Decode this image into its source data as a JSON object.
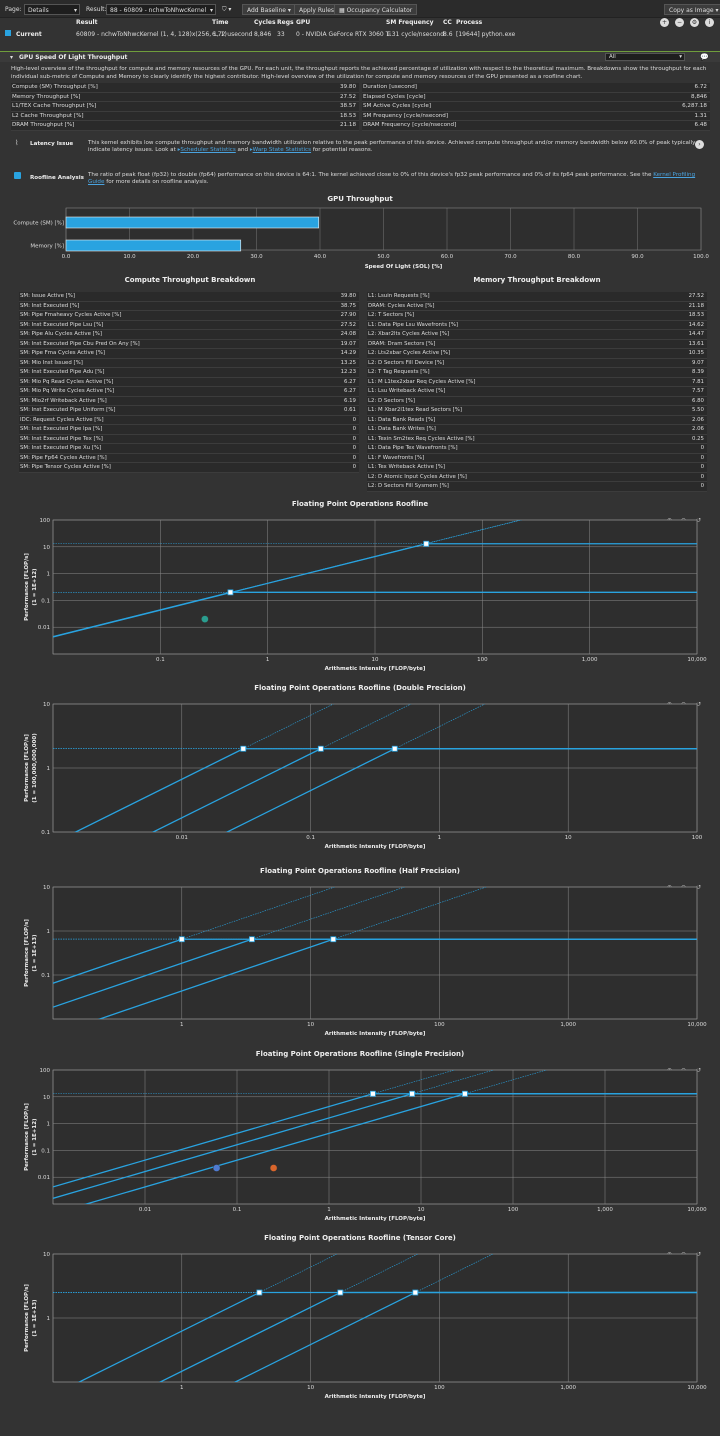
{
  "toolbar": {
    "page_label": "Page:",
    "page_value": "Details",
    "result_label": "Result:",
    "result_value": "88 - 60809 - nchwToNhwcKernel",
    "add_baseline": "Add Baseline",
    "apply_rules": "Apply Rules",
    "occupancy": "Occupancy Calculator",
    "copy_image": "Copy as Image"
  },
  "result": {
    "headers": [
      "Result",
      "Time",
      "Cycles",
      "Regs",
      "GPU",
      "SM Frequency",
      "CC",
      "Process"
    ],
    "current_label": "Current",
    "values": [
      "60809 - nchwToNhwcKernel (1, 4, 128)x(256, 1, 1)",
      "6.72 usecond",
      "8,846",
      "33",
      "0 - NVIDIA GeForce RTX 3060 Ti",
      "1.31 cycle/nsecond",
      "8.6",
      "[19644] python.exe"
    ]
  },
  "section": {
    "title": "GPU Speed Of Light Throughput",
    "filter": "All",
    "description": "High-level overview of the throughput for compute and memory resources of the GPU. For each unit, the throughput reports the achieved percentage of utilization with respect to the theoretical maximum. Breakdowns show the throughput for each individual sub-metric of Compute and Memory to clearly identify the highest contributor. High-level overview of the utilization for compute and memory resources of the GPU presented as a roofline chart."
  },
  "metrics_left": [
    [
      "Compute (SM) Throughput [%]",
      "39.80"
    ],
    [
      "Memory Throughput [%]",
      "27.52"
    ],
    [
      "L1/TEX Cache Throughput [%]",
      "38.57"
    ],
    [
      "L2 Cache Throughput [%]",
      "18.53"
    ],
    [
      "DRAM Throughput [%]",
      "21.18"
    ]
  ],
  "metrics_right": [
    [
      "Duration [usecond]",
      "6.72"
    ],
    [
      "Elapsed Cycles [cycle]",
      "8,846"
    ],
    [
      "SM Active Cycles [cycle]",
      "6,287.18"
    ],
    [
      "SM Frequency [cycle/nsecond]",
      "1.31"
    ],
    [
      "DRAM Frequency [cycle/nsecond]",
      "6.48"
    ]
  ],
  "issues": {
    "latency_title": "Latency Issue",
    "latency_text": "This kernel exhibits low compute throughput and memory bandwidth utilization relative to the peak performance of this device. Achieved compute throughput and/or memory bandwidth below 60.0% of peak typically indicate latency issues. Look at",
    "latency_link1": "Scheduler Statistics",
    "latency_and": "and",
    "latency_link2": "Warp State Statistics",
    "latency_tail": "for potential reasons.",
    "roofline_title": "Roofline Analysis",
    "roofline_text": "The ratio of peak float (fp32) to double (fp64) performance on this device is 64:1. The kernel achieved close to 0% of this device's fp32 peak performance and 0% of its fp64 peak performance. See the",
    "roofline_link": "Kernel Profiling Guide",
    "roofline_tail": "for more details on roofline analysis."
  },
  "gpu_throughput_chart": {
    "title": "GPU Throughput",
    "xlabel": "Speed Of Light (SOL) [%]",
    "categories": [
      "Compute (SM) [%]",
      "Memory [%]"
    ],
    "values": [
      39.8,
      27.52
    ],
    "ticks": [
      "0.0",
      "10.0",
      "20.0",
      "30.0",
      "40.0",
      "50.0",
      "60.0",
      "70.0",
      "80.0",
      "90.0",
      "100.0"
    ]
  },
  "compute_breakdown": {
    "title": "Compute Throughput Breakdown",
    "rows": [
      [
        "SM: Issue Active [%]",
        "39.80"
      ],
      [
        "SM: Inst Executed [%]",
        "38.75"
      ],
      [
        "SM: Pipe Fmaheavy Cycles Active [%]",
        "27.90"
      ],
      [
        "SM: Inst Executed Pipe Lsu [%]",
        "27.52"
      ],
      [
        "SM: Pipe Alu Cycles Active [%]",
        "24.08"
      ],
      [
        "SM: Inst Executed Pipe Cbu Pred On Any [%]",
        "19.07"
      ],
      [
        "SM: Pipe Fma Cycles Active [%]",
        "14.29"
      ],
      [
        "SM: Mio Inst Issued [%]",
        "13.25"
      ],
      [
        "SM: Inst Executed Pipe Adu [%]",
        "12.23"
      ],
      [
        "SM: Mio Pq Read Cycles Active [%]",
        "6.27"
      ],
      [
        "SM: Mio Pq Write Cycles Active [%]",
        "6.27"
      ],
      [
        "SM: Mio2rf Writeback Active [%]",
        "6.19"
      ],
      [
        "SM: Inst Executed Pipe Uniform [%]",
        "0.61"
      ],
      [
        "IDC: Request Cycles Active [%]",
        "0"
      ],
      [
        "SM: Inst Executed Pipe Ipa [%]",
        "0"
      ],
      [
        "SM: Inst Executed Pipe Tex [%]",
        "0"
      ],
      [
        "SM: Inst Executed Pipe Xu [%]",
        "0"
      ],
      [
        "SM: Pipe Fp64 Cycles Active [%]",
        "0"
      ],
      [
        "SM: Pipe Tensor Cycles Active [%]",
        "0"
      ]
    ]
  },
  "memory_breakdown": {
    "title": "Memory Throughput Breakdown",
    "rows": [
      [
        "L1: Lsuin Requests [%]",
        "27.52"
      ],
      [
        "DRAM: Cycles Active [%]",
        "21.18"
      ],
      [
        "L2: T Sectors [%]",
        "18.53"
      ],
      [
        "L1: Data Pipe Lsu Wavefronts [%]",
        "14.62"
      ],
      [
        "L2: Xbar2lts Cycles Active [%]",
        "14.47"
      ],
      [
        "DRAM: Dram Sectors [%]",
        "13.61"
      ],
      [
        "L2: Lts2xbar Cycles Active [%]",
        "10.35"
      ],
      [
        "L2: D Sectors Fill Device [%]",
        "9.07"
      ],
      [
        "L2: T Tag Requests [%]",
        "8.39"
      ],
      [
        "L1: M L1tex2xbar Req Cycles Active [%]",
        "7.81"
      ],
      [
        "L1: Lsu Writeback Active [%]",
        "7.57"
      ],
      [
        "L2: D Sectors [%]",
        "6.80"
      ],
      [
        "L1: M Xbar2l1tex Read Sectors [%]",
        "5.50"
      ],
      [
        "L1: Data Bank Reads [%]",
        "2.06"
      ],
      [
        "L1: Data Bank Writes [%]",
        "2.06"
      ],
      [
        "L1: Texin Sm2tex Req Cycles Active [%]",
        "0.25"
      ],
      [
        "L1: Data Pipe Tex Wavefronts [%]",
        "0"
      ],
      [
        "L1: F Wavefronts [%]",
        "0"
      ],
      [
        "L1: Tex Writeback Active [%]",
        "0"
      ],
      [
        "L2: D Atomic Input Cycles Active [%]",
        "0"
      ],
      [
        "L2: D Sectors Fill Sysmem [%]",
        "0"
      ]
    ]
  },
  "rooflines": [
    {
      "title": "Floating Point Operations Roofline",
      "xlabel": "Arithmetic Intensity [FLOP/byte]",
      "ylabel": "Performance [FLOP/s]",
      "yunit": "(1 = 1E+12)",
      "xlim": [
        0.01,
        10000
      ],
      "ylim": [
        0.001,
        100
      ],
      "xticks": [
        "0.1",
        "1",
        "10",
        "100",
        "1,000",
        "10,000"
      ],
      "yticks": [
        "100",
        "10",
        "1",
        "0.1",
        "0.01"
      ],
      "roofs": [
        {
          "ai": 30,
          "peak": 13
        },
        {
          "ai": 0.45,
          "peak": 0.2
        }
      ],
      "points": [
        {
          "x": 0.26,
          "y": 0.02,
          "color": "#2a9d8f"
        }
      ]
    },
    {
      "title": "Floating Point Operations Roofline (Double Precision)",
      "xlabel": "Arithmetic Intensity [FLOP/byte]",
      "ylabel": "Performance [FLOP/s]",
      "yunit": "(1 = 100,000,000,000)",
      "xlim": [
        0.001,
        100
      ],
      "ylim": [
        0.1,
        10
      ],
      "xticks": [
        "0.01",
        "0.1",
        "1",
        "10",
        "100"
      ],
      "yticks": [
        "10",
        "1",
        "0.1"
      ],
      "roofs": [
        {
          "ai": 0.03,
          "peak": 2
        },
        {
          "ai": 0.12,
          "peak": 2
        },
        {
          "ai": 0.45,
          "peak": 2
        }
      ],
      "points": []
    },
    {
      "title": "Floating Point Operations Roofline (Half Precision)",
      "xlabel": "Arithmetic Intensity [FLOP/byte]",
      "ylabel": "Performance [FLOP/s]",
      "yunit": "(1 = 1E+13)",
      "xlim": [
        0.1,
        10000
      ],
      "ylim": [
        0.01,
        10
      ],
      "xticks": [
        "1",
        "10",
        "100",
        "1,000",
        "10,000"
      ],
      "yticks": [
        "10",
        "1",
        "0.1"
      ],
      "roofs": [
        {
          "ai": 1,
          "peak": 0.65
        },
        {
          "ai": 3.5,
          "peak": 0.65
        },
        {
          "ai": 15,
          "peak": 0.65
        }
      ],
      "points": []
    },
    {
      "title": "Floating Point Operations Roofline (Single Precision)",
      "xlabel": "Arithmetic Intensity [FLOP/byte]",
      "ylabel": "Performance [FLOP/s]",
      "yunit": "(1 = 1E+12)",
      "xlim": [
        0.001,
        10000
      ],
      "ylim": [
        0.001,
        100
      ],
      "xticks": [
        "0.01",
        "0.1",
        "1",
        "10",
        "100",
        "1,000",
        "10,000"
      ],
      "yticks": [
        "100",
        "10",
        "1",
        "0.1",
        "0.01"
      ],
      "roofs": [
        {
          "ai": 3,
          "peak": 13
        },
        {
          "ai": 8,
          "peak": 13
        },
        {
          "ai": 30,
          "peak": 13
        }
      ],
      "points": [
        {
          "x": 0.06,
          "y": 0.022,
          "color": "#4f7bd1"
        },
        {
          "x": 0.25,
          "y": 0.022,
          "color": "#d9652b"
        }
      ]
    },
    {
      "title": "Floating Point Operations Roofline (Tensor Core)",
      "xlabel": "Arithmetic Intensity [FLOP/byte]",
      "ylabel": "Performance [FLOP/s]",
      "yunit": "(1 = 1E+13)",
      "xlim": [
        0.1,
        10000
      ],
      "ylim": [
        0.1,
        10
      ],
      "xticks": [
        "1",
        "10",
        "100",
        "1,000",
        "10,000"
      ],
      "yticks": [
        "10",
        "1"
      ],
      "roofs": [
        {
          "ai": 4,
          "peak": 2.5
        },
        {
          "ai": 17,
          "peak": 2.5
        },
        {
          "ai": 65,
          "peak": 2.5
        }
      ],
      "points": []
    }
  ],
  "colors": {
    "accent": "#29a3e0",
    "section_line": "#6f9d3c",
    "background": "#333333"
  }
}
